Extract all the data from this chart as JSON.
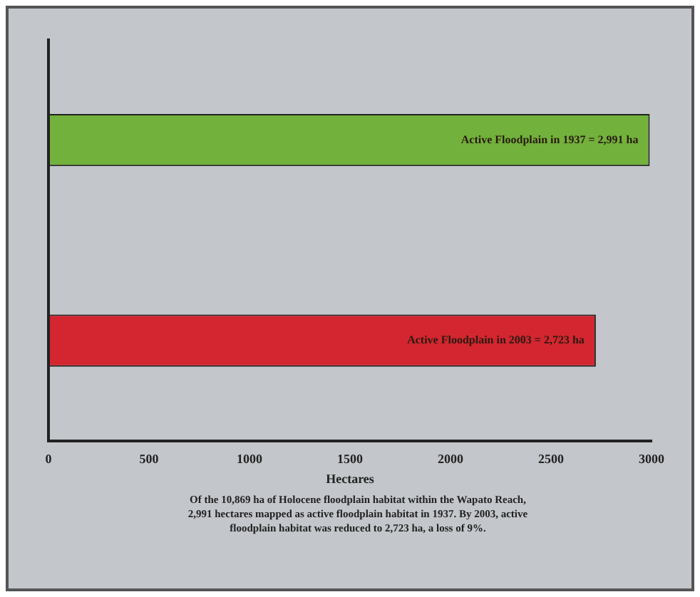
{
  "chart_data": {
    "type": "bar",
    "orientation": "horizontal",
    "categories": [
      null,
      null
    ],
    "values": [
      2991,
      2723
    ],
    "colors": [
      "#72b13c",
      "#d32630"
    ],
    "value_labels": [
      "Active Floodplain in 1937 = 2,991 ha",
      "Active Floodplain in 2003 = 2,723 ha"
    ],
    "xlabel": "Hectares",
    "xlim": [
      0,
      3000
    ],
    "xticks": [
      0,
      500,
      1000,
      1500,
      2000,
      2500,
      3000
    ],
    "grid": false,
    "legend": false,
    "annotations": [
      "Of the 10,869 ha of Holocene floodplain habitat within the Wapato Reach, 2,991 hectares mapped as active floodplain habitat in 1937. By 2003, active floodplain habitat was reduced to 2,723 ha, a loss of 9%."
    ]
  }
}
